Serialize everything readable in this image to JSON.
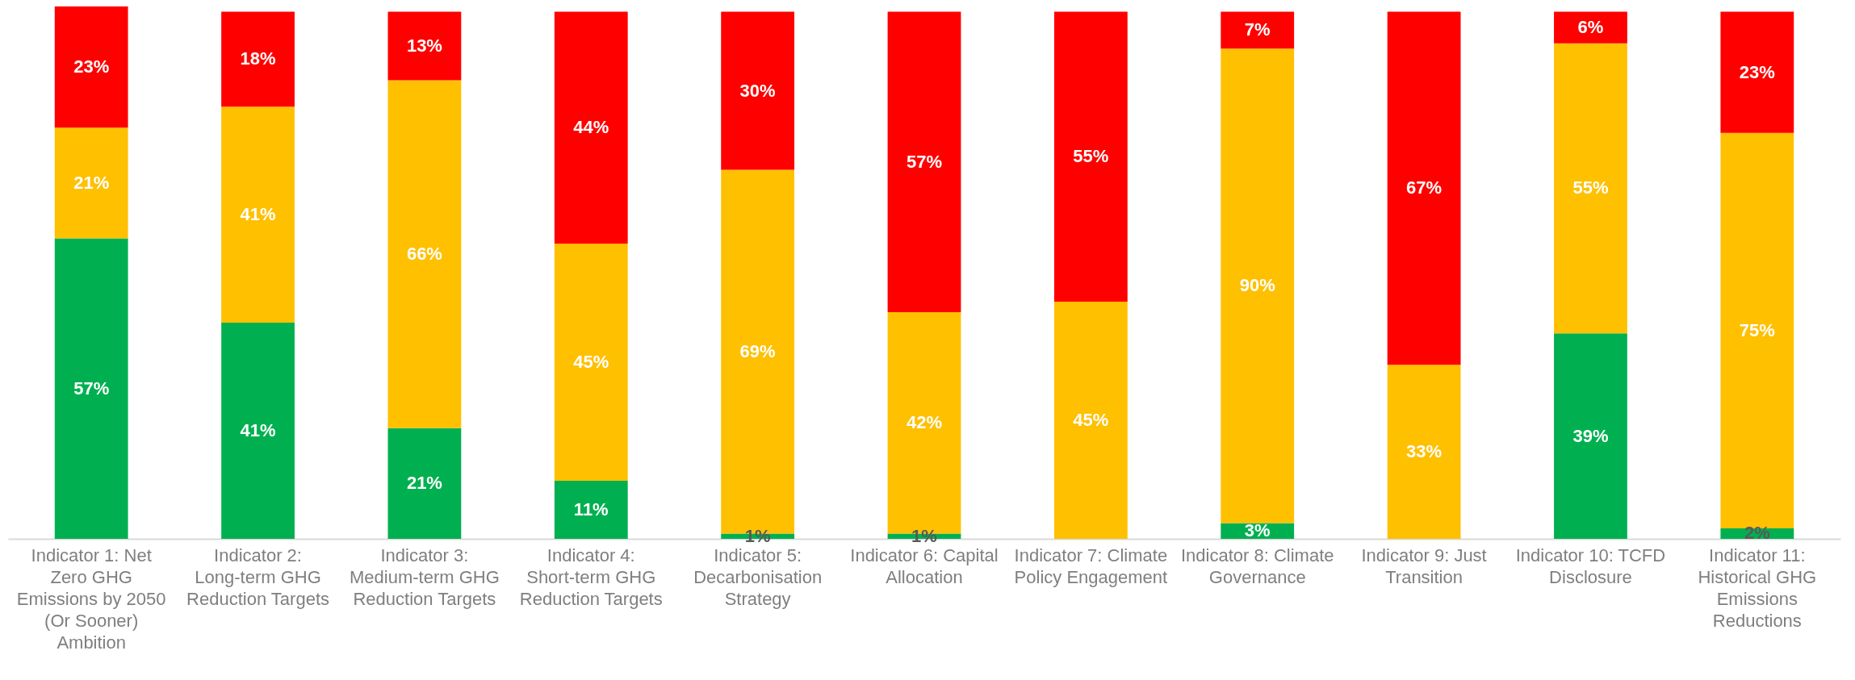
{
  "chart_data": {
    "type": "bar",
    "stacked": true,
    "tick_labels": "x",
    "categories": [
      "Indicator 1: Net Zero GHG Emissions by 2050 (Or Sooner) Ambition",
      "Indicator 2: Long-term GHG Reduction Targets",
      "Indicator 3: Medium-term GHG Reduction Targets",
      "Indicator 4: Short-term GHG Reduction Targets",
      "Indicator 5: Decarbonisation Strategy",
      "Indicator 6: Capital Allocation",
      "Indicator 7: Climate Policy Engagement",
      "Indicator 8: Climate Governance",
      "Indicator 9: Just Transition",
      "Indicator 10: TCFD Disclosure",
      "Indicator 11: Historical GHG Emissions Reductions"
    ],
    "series": [
      {
        "color": "#00b050",
        "values": [
          57,
          41,
          21,
          11,
          1,
          1,
          null,
          3,
          null,
          39,
          2
        ],
        "value_labels": [
          "57%",
          "41%",
          "21%",
          "11%",
          "1%",
          "1%",
          null,
          "3%",
          null,
          "39%",
          "2%"
        ]
      },
      {
        "color": "#ffc000",
        "values": [
          21,
          41,
          66,
          45,
          69,
          42,
          45,
          90,
          33,
          55,
          75
        ],
        "value_labels": [
          "21%",
          "41%",
          "66%",
          "45%",
          "69%",
          "42%",
          "45%",
          "90%",
          "33%",
          "55%",
          "75%"
        ]
      },
      {
        "color": "#ff0000",
        "values": [
          23,
          18,
          13,
          44,
          30,
          57,
          55,
          7,
          67,
          6,
          23
        ],
        "value_labels": [
          "23%",
          "18%",
          "13%",
          "44%",
          "30%",
          "57%",
          "55%",
          "7%",
          "67%",
          "6%",
          "23%"
        ]
      }
    ]
  }
}
